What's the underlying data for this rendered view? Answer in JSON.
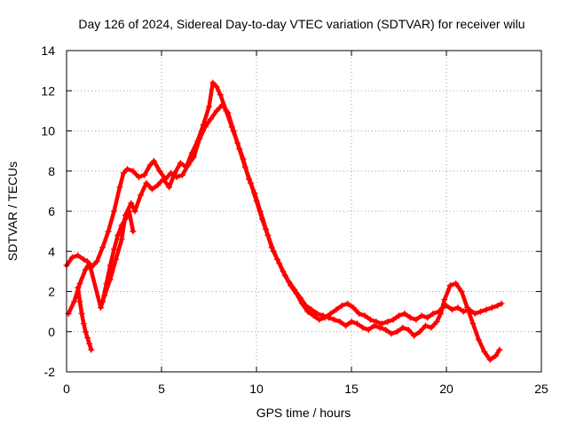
{
  "chart_data": {
    "type": "scatter",
    "title": "Day 126 of 2024, Sidereal Day-to-day VTEC variation (SDTVAR) for receiver wilu",
    "xlabel": "GPS time / hours",
    "ylabel": "SDTVAR / TECUs",
    "xlim": [
      0,
      25
    ],
    "ylim": [
      -2,
      14
    ],
    "xticks": [
      0,
      5,
      10,
      15,
      20,
      25
    ],
    "yticks": [
      -2,
      0,
      2,
      4,
      6,
      8,
      10,
      12,
      14
    ],
    "grid": true,
    "marker": "+",
    "series": [
      {
        "name": "SDTVAR trace 1",
        "color": "#ff0000",
        "x": [
          0.0,
          0.3,
          0.6,
          0.9,
          1.1,
          1.3,
          1.6,
          1.9,
          2.2,
          2.5,
          2.8,
          3.0,
          3.2,
          3.5,
          3.8,
          4.1,
          4.4,
          4.6,
          4.9,
          5.2,
          5.5,
          5.8,
          6.1,
          6.4,
          6.7,
          7.0,
          7.3,
          7.6,
          7.9,
          8.2,
          8.5,
          8.8,
          9.1,
          9.4,
          9.7,
          10.0,
          10.3,
          10.6,
          10.9,
          11.2,
          11.5,
          11.8,
          12.1,
          12.4,
          12.7,
          13.0,
          13.3,
          13.6,
          13.9,
          14.2,
          14.5,
          14.8,
          15.1,
          15.4,
          15.7,
          16.0,
          16.3,
          16.6,
          16.9,
          17.2,
          17.5,
          17.8,
          18.1,
          18.4,
          18.7,
          19.0,
          19.3,
          19.6,
          19.8,
          20.0,
          20.3,
          20.6,
          20.9,
          21.2,
          21.5,
          21.8,
          22.1,
          22.4,
          22.7,
          22.9
        ],
        "y": [
          3.3,
          3.7,
          3.8,
          3.6,
          3.5,
          3.2,
          3.5,
          4.2,
          5.0,
          6.0,
          7.2,
          7.9,
          8.1,
          8.0,
          7.7,
          7.8,
          8.3,
          8.5,
          8.0,
          7.6,
          7.9,
          7.7,
          7.8,
          8.3,
          8.7,
          9.6,
          10.2,
          10.6,
          11.0,
          11.3,
          10.9,
          10.0,
          9.1,
          8.2,
          7.4,
          6.5,
          5.6,
          4.8,
          4.0,
          3.4,
          2.8,
          2.3,
          1.9,
          1.4,
          1.0,
          0.8,
          0.6,
          0.7,
          0.9,
          1.1,
          1.3,
          1.4,
          1.2,
          0.9,
          0.8,
          0.6,
          0.5,
          0.4,
          0.5,
          0.6,
          0.8,
          0.9,
          0.7,
          0.6,
          0.8,
          0.7,
          0.9,
          1.0,
          1.2,
          1.3,
          1.1,
          1.2,
          1.0,
          1.1,
          0.9,
          1.0,
          1.1,
          1.2,
          1.3,
          1.4
        ]
      },
      {
        "name": "SDTVAR trace 2",
        "color": "#ff0000",
        "x": [
          0.1,
          0.4,
          0.7,
          1.0,
          1.2,
          1.8,
          2.0,
          2.3,
          2.6,
          2.9,
          3.1,
          3.4,
          3.6,
          3.9,
          4.2,
          4.5,
          4.8,
          5.1,
          5.4,
          5.7,
          6.0,
          6.3,
          6.6,
          6.9,
          7.2,
          7.5,
          7.7,
          7.9,
          8.1,
          8.4,
          8.7,
          9.0,
          9.3,
          9.6,
          9.9,
          10.2,
          10.5,
          10.8,
          11.1,
          11.4,
          11.7,
          12.0,
          12.3,
          12.6,
          12.9,
          13.2,
          13.5,
          13.8,
          14.1,
          14.4,
          14.7,
          15.0,
          15.3,
          15.6,
          15.9,
          16.2,
          16.5,
          16.8,
          17.1,
          17.4,
          17.7,
          18.0,
          18.3,
          18.6,
          18.9,
          19.2,
          19.5,
          19.7,
          19.9,
          20.2,
          20.5,
          20.8,
          21.1,
          21.4,
          21.7,
          22.0,
          22.3,
          22.6,
          22.8
        ],
        "y": [
          0.9,
          1.5,
          2.4,
          3.1,
          3.4,
          1.2,
          1.8,
          2.6,
          3.6,
          4.6,
          5.8,
          6.4,
          6.0,
          6.8,
          7.4,
          7.1,
          7.3,
          7.6,
          7.2,
          7.9,
          8.4,
          8.2,
          8.9,
          9.5,
          10.3,
          11.2,
          12.4,
          12.2,
          11.8,
          11.0,
          10.2,
          9.4,
          8.6,
          7.6,
          6.9,
          6.0,
          5.1,
          4.2,
          3.6,
          3.0,
          2.5,
          2.1,
          1.7,
          1.3,
          1.1,
          0.9,
          0.8,
          0.7,
          0.6,
          0.5,
          0.3,
          0.5,
          0.4,
          0.2,
          0.1,
          0.3,
          0.2,
          0.1,
          -0.1,
          0.0,
          0.2,
          0.1,
          -0.2,
          0.0,
          0.3,
          0.2,
          0.5,
          0.9,
          1.6,
          2.3,
          2.4,
          2.0,
          1.2,
          0.4,
          -0.4,
          -1.0,
          -1.4,
          -1.2,
          -0.9
        ]
      },
      {
        "name": "SDTVAR trace 3",
        "color": "#ff0000",
        "x": [
          0.6,
          0.7,
          0.8,
          0.9,
          1.0,
          1.1,
          1.2,
          1.3
        ],
        "y": [
          2.2,
          1.5,
          0.9,
          0.4,
          0.0,
          -0.3,
          -0.6,
          -0.9
        ]
      },
      {
        "name": "SDTVAR trace 4",
        "color": "#ff0000",
        "x": [
          1.9,
          2.1,
          2.3,
          2.5,
          2.7,
          2.9,
          3.1,
          3.3,
          3.5
        ],
        "y": [
          1.5,
          2.4,
          3.3,
          4.1,
          4.8,
          5.3,
          5.6,
          6.0,
          5.0
        ]
      }
    ]
  }
}
